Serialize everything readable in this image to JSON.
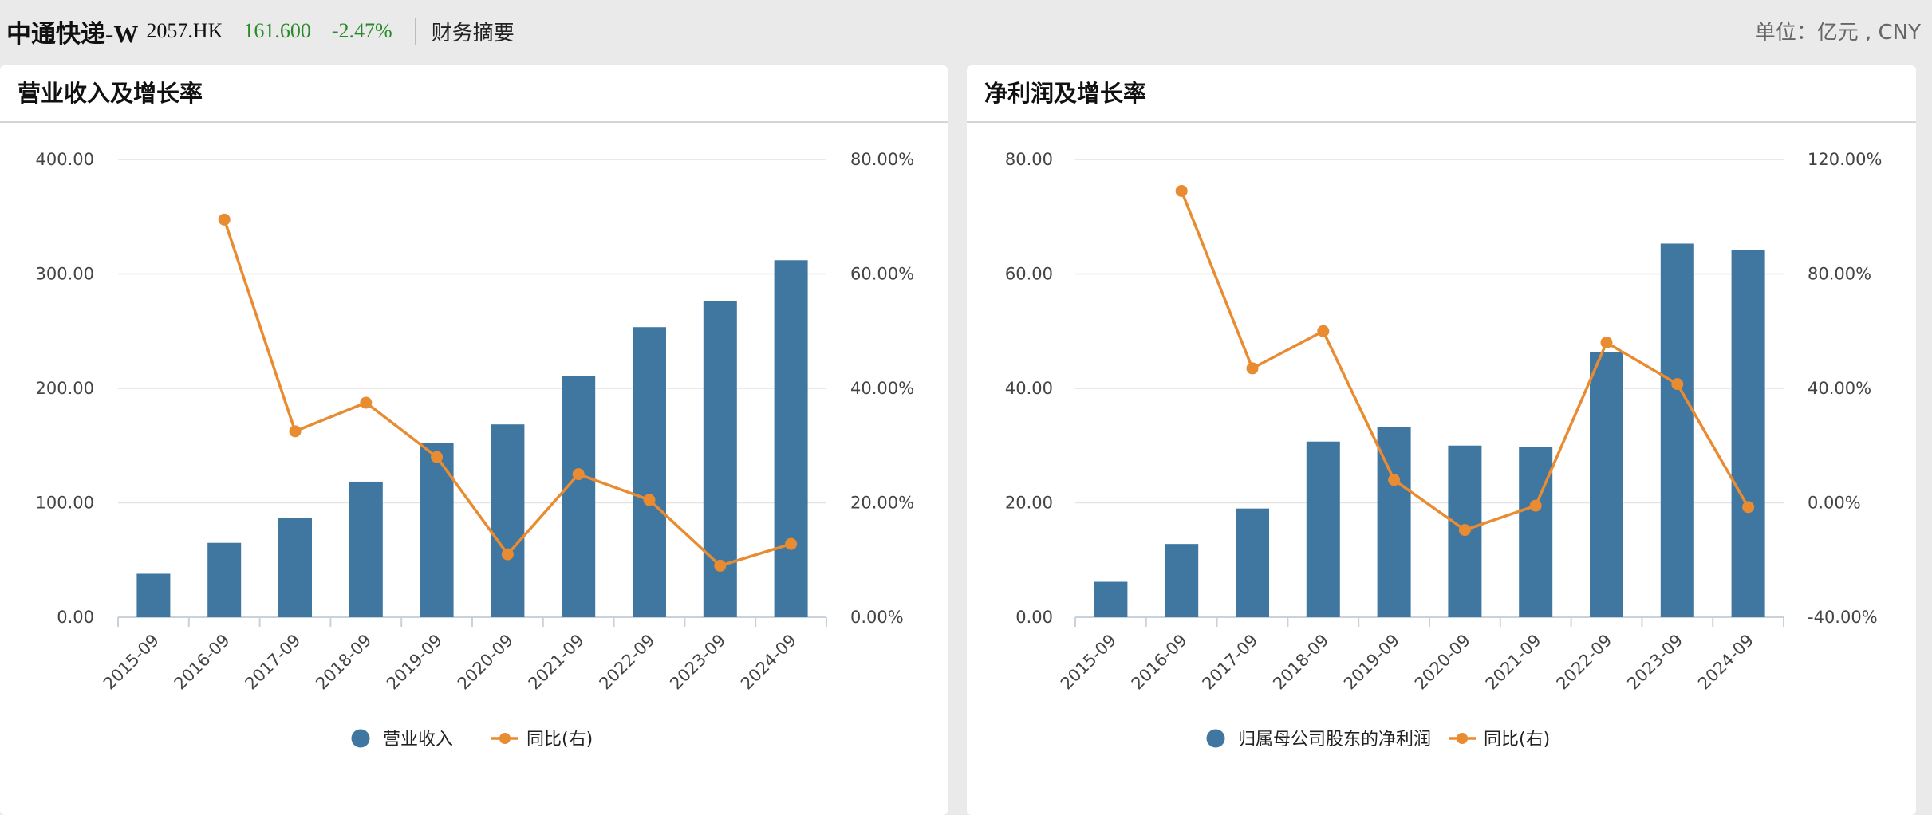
{
  "header": {
    "name": "中通快递-W",
    "code": "2057.HK",
    "price": "161.600",
    "change": "-2.47%",
    "tab": "财务摘要",
    "unit": "单位：亿元 , CNY"
  },
  "colors": {
    "bar": "#3f77a1",
    "line": "#e88b31",
    "grid": "#e4e4e4",
    "axis": "#c8d2dc",
    "price_down": "#2a8a2a"
  },
  "chart_data": [
    {
      "type": "bar",
      "title": "营业收入及增长率",
      "categories": [
        "2015-09",
        "2016-09",
        "2017-09",
        "2018-09",
        "2019-09",
        "2020-09",
        "2021-09",
        "2022-09",
        "2023-09",
        "2024-09"
      ],
      "series": [
        {
          "name": "营业收入",
          "type": "bar",
          "axis": "left",
          "values": [
            38.0,
            65.0,
            86.5,
            118.5,
            152.0,
            168.5,
            210.5,
            253.5,
            276.5,
            312.0
          ]
        },
        {
          "name": "同比(右)",
          "type": "line",
          "axis": "right",
          "values": [
            null,
            69.5,
            32.5,
            37.5,
            28.0,
            11.0,
            25.0,
            20.5,
            9.0,
            12.8
          ]
        }
      ],
      "y_left": {
        "min": 0,
        "max": 400,
        "ticks": [
          "400.00",
          "300.00",
          "200.00",
          "100.00",
          "0.00"
        ]
      },
      "y_right": {
        "min": 0,
        "max": 80,
        "ticks": [
          "80.00%",
          "60.00%",
          "40.00%",
          "20.00%",
          "0.00%"
        ]
      },
      "grid": true,
      "legend": "bottom-center"
    },
    {
      "type": "bar",
      "title": "净利润及增长率",
      "categories": [
        "2015-09",
        "2016-09",
        "2017-09",
        "2018-09",
        "2019-09",
        "2020-09",
        "2021-09",
        "2022-09",
        "2023-09",
        "2024-09"
      ],
      "series": [
        {
          "name": "归属母公司股东的净利润",
          "type": "bar",
          "axis": "left",
          "values": [
            6.2,
            12.8,
            19.0,
            30.7,
            33.2,
            30.0,
            29.7,
            46.3,
            65.3,
            64.2
          ]
        },
        {
          "name": "同比(右)",
          "type": "line",
          "axis": "right",
          "values": [
            null,
            109.0,
            47.0,
            60.0,
            8.0,
            -9.5,
            -1.0,
            56.0,
            41.5,
            -1.5
          ]
        }
      ],
      "y_left": {
        "min": 0,
        "max": 80,
        "ticks": [
          "80.00",
          "60.00",
          "40.00",
          "20.00",
          "0.00"
        ]
      },
      "y_right": {
        "min": -40,
        "max": 120,
        "ticks": [
          "120.00%",
          "80.00%",
          "40.00%",
          "0.00%",
          "-40.00%"
        ]
      },
      "grid": true,
      "legend": "bottom-center"
    }
  ]
}
